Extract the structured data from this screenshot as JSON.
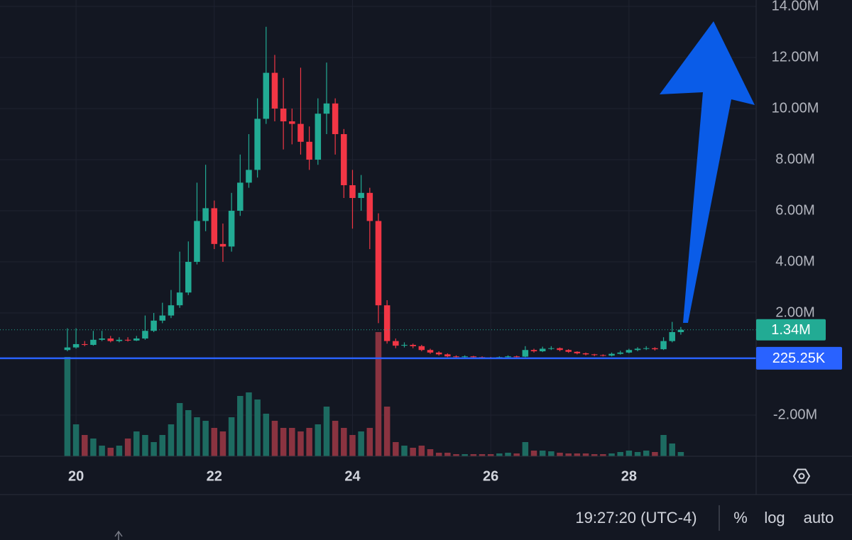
{
  "chart_data": {
    "type": "candlestick",
    "x": [
      19.875,
      20,
      20.125,
      20.25,
      20.375,
      20.5,
      20.625,
      20.75,
      20.875,
      21,
      21.125,
      21.25,
      21.375,
      21.5,
      21.625,
      21.75,
      21.875,
      22,
      22.125,
      22.25,
      22.375,
      22.5,
      22.625,
      22.75,
      22.875,
      23,
      23.125,
      23.25,
      23.375,
      23.5,
      23.625,
      23.75,
      23.875,
      24,
      24.125,
      24.25,
      24.375,
      24.5,
      24.625,
      24.75,
      24.875,
      25,
      25.125,
      25.25,
      25.375,
      25.5,
      25.625,
      25.75,
      25.875,
      26,
      26.125,
      26.25,
      26.375,
      26.5,
      26.625,
      26.75,
      26.875,
      27,
      27.125,
      27.25,
      27.375,
      27.5,
      27.625,
      27.75,
      27.875,
      28,
      28.125,
      28.25,
      28.375,
      28.5,
      28.625,
      28.75
    ],
    "open": [
      0.55,
      0.65,
      0.78,
      0.75,
      0.95,
      1.0,
      0.9,
      0.95,
      0.92,
      1.0,
      1.3,
      1.7,
      1.9,
      2.3,
      2.8,
      4.0,
      5.6,
      6.1,
      4.7,
      4.6,
      6.0,
      7.1,
      7.6,
      9.6,
      11.4,
      10.0,
      9.5,
      9.4,
      8.7,
      8.0,
      9.8,
      10.2,
      9.0,
      7.0,
      6.5,
      6.7,
      5.6,
      2.3,
      0.9,
      0.72,
      0.75,
      0.7,
      0.55,
      0.45,
      0.38,
      0.3,
      0.28,
      0.3,
      0.27,
      0.25,
      0.24,
      0.27,
      0.3,
      0.29,
      0.55,
      0.5,
      0.6,
      0.62,
      0.55,
      0.48,
      0.42,
      0.38,
      0.35,
      0.33,
      0.4,
      0.45,
      0.55,
      0.6,
      0.62,
      0.58,
      0.9,
      1.25
    ],
    "high": [
      1.4,
      1.4,
      0.9,
      1.3,
      1.3,
      1.1,
      1.05,
      1.05,
      1.1,
      1.9,
      2.0,
      2.4,
      2.9,
      4.4,
      4.8,
      7.1,
      7.8,
      6.4,
      5.5,
      6.7,
      8.2,
      9.0,
      10.4,
      13.2,
      12.1,
      11.2,
      10.0,
      11.6,
      9.3,
      10.4,
      11.8,
      10.4,
      9.2,
      7.6,
      7.4,
      6.9,
      5.9,
      2.5,
      1.0,
      0.85,
      0.8,
      0.75,
      0.6,
      0.5,
      0.42,
      0.34,
      0.34,
      0.32,
      0.3,
      0.28,
      0.3,
      0.34,
      0.33,
      0.7,
      0.6,
      0.68,
      0.7,
      0.65,
      0.58,
      0.5,
      0.45,
      0.4,
      0.38,
      0.45,
      0.52,
      0.6,
      0.66,
      0.7,
      0.66,
      1.05,
      1.65,
      1.45
    ],
    "low": [
      0.5,
      0.6,
      0.7,
      0.72,
      0.9,
      0.85,
      0.85,
      0.88,
      0.9,
      0.95,
      1.25,
      1.6,
      1.8,
      2.2,
      2.7,
      3.9,
      5.2,
      4.5,
      4.0,
      4.4,
      5.8,
      6.9,
      7.3,
      9.4,
      9.5,
      8.4,
      8.6,
      8.2,
      7.6,
      7.8,
      9.0,
      8.2,
      6.5,
      5.3,
      6.0,
      4.5,
      1.6,
      0.8,
      0.62,
      0.65,
      0.62,
      0.5,
      0.4,
      0.33,
      0.27,
      0.25,
      0.25,
      0.24,
      0.22,
      0.2,
      0.22,
      0.25,
      0.26,
      0.27,
      0.45,
      0.47,
      0.55,
      0.5,
      0.44,
      0.38,
      0.34,
      0.31,
      0.3,
      0.3,
      0.37,
      0.42,
      0.5,
      0.55,
      0.53,
      0.55,
      0.85,
      1.15
    ],
    "close": [
      0.65,
      0.78,
      0.75,
      0.95,
      1.0,
      0.9,
      0.95,
      0.92,
      1.0,
      1.3,
      1.7,
      1.9,
      2.3,
      2.8,
      4.0,
      5.6,
      6.1,
      4.7,
      4.6,
      6.0,
      7.1,
      7.6,
      9.6,
      11.4,
      10.0,
      9.5,
      9.4,
      8.7,
      8.0,
      9.8,
      10.2,
      9.0,
      7.0,
      6.5,
      6.7,
      5.6,
      2.3,
      0.9,
      0.72,
      0.75,
      0.7,
      0.55,
      0.45,
      0.38,
      0.3,
      0.28,
      0.3,
      0.27,
      0.25,
      0.24,
      0.27,
      0.3,
      0.29,
      0.55,
      0.5,
      0.6,
      0.62,
      0.55,
      0.48,
      0.42,
      0.38,
      0.35,
      0.33,
      0.4,
      0.45,
      0.55,
      0.6,
      0.62,
      0.58,
      0.9,
      1.25,
      1.34
    ],
    "volume": [
      140,
      45,
      30,
      25,
      15,
      12,
      15,
      25,
      35,
      30,
      20,
      30,
      45,
      75,
      65,
      55,
      50,
      40,
      35,
      55,
      85,
      90,
      80,
      60,
      50,
      40,
      40,
      35,
      40,
      45,
      70,
      50,
      40,
      30,
      35,
      40,
      175,
      70,
      20,
      15,
      12,
      15,
      10,
      5,
      5,
      3,
      3,
      3,
      3,
      3,
      4,
      5,
      4,
      20,
      8,
      8,
      7,
      5,
      4,
      4,
      4,
      3,
      3,
      4,
      6,
      8,
      6,
      8,
      6,
      30,
      18,
      6
    ],
    "up_color": "#22ab94",
    "down_color": "#f23645",
    "up_volume_color": "#1d6b61",
    "down_volume_color": "#8a3340",
    "xlim": [
      18.9,
      29.84
    ],
    "ylim": [
      -3.61,
      14.25
    ],
    "xticks": [
      20,
      22,
      24,
      26,
      28
    ],
    "yticks": [
      {
        "value": 14,
        "label": "14.00M"
      },
      {
        "value": 12,
        "label": "12.00M"
      },
      {
        "value": 10,
        "label": "10.00M"
      },
      {
        "value": 8,
        "label": "8.00M"
      },
      {
        "value": 6,
        "label": "6.00M"
      },
      {
        "value": 4,
        "label": "4.00M"
      },
      {
        "value": 2,
        "label": "2.00M"
      },
      {
        "value": -2,
        "label": "-2.00M"
      }
    ],
    "grid": true,
    "price_line": {
      "value": 1.34,
      "label": "1.34M",
      "color": "#22ab94"
    },
    "reference_line": {
      "value": 0.22525,
      "label": "225.25K",
      "color": "#2962ff"
    }
  },
  "toolbar": {
    "time": "19:27:20 (UTC-4)",
    "buttons": [
      "%",
      "log",
      "auto"
    ]
  }
}
